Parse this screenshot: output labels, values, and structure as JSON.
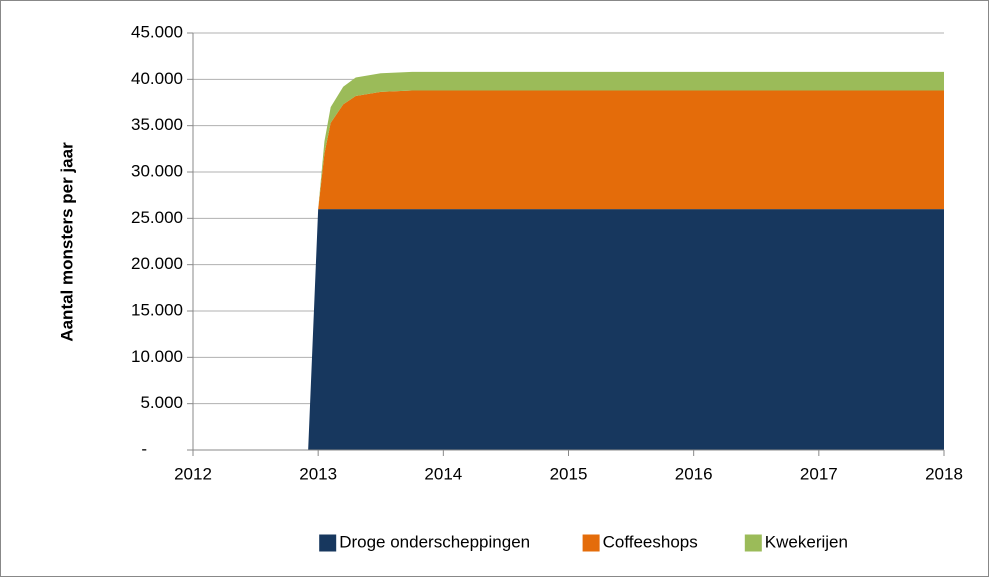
{
  "chart_data": {
    "type": "stacked_area",
    "y_label": "Aantal monsters per jaar",
    "x": [
      2012,
      2012.92,
      2013,
      2013.05,
      2013.1,
      2013.2,
      2013.3,
      2013.5,
      2013.75,
      2014,
      2015,
      2016,
      2017,
      2018
    ],
    "series": [
      {
        "name": "Droge onderscheppingen",
        "color": "#17375e",
        "values": [
          0,
          0,
          26000,
          26000,
          26000,
          26000,
          26000,
          26000,
          26000,
          26000,
          26000,
          26000,
          26000,
          26000
        ]
      },
      {
        "name": "Coffeeshops",
        "color": "#e46c0a",
        "values": [
          0,
          0,
          0,
          6000,
          9300,
          11300,
          12200,
          12650,
          12800,
          12800,
          12800,
          12800,
          12800,
          12800
        ]
      },
      {
        "name": "Kwekerijen",
        "color": "#9bbb59",
        "values": [
          0,
          0,
          0,
          1300,
          1700,
          1900,
          2000,
          2000,
          2000,
          2000,
          2000,
          2000,
          2000,
          2000
        ]
      }
    ],
    "xlim": [
      2012,
      2018
    ],
    "xticks": [
      2012,
      2013,
      2014,
      2015,
      2016,
      2017,
      2018
    ],
    "ylim": [
      0,
      45000
    ],
    "yticks": [
      {
        "value": 0,
        "label": "-"
      },
      {
        "value": 5000,
        "label": "5.000"
      },
      {
        "value": 10000,
        "label": "10.000"
      },
      {
        "value": 15000,
        "label": "15.000"
      },
      {
        "value": 20000,
        "label": "20.000"
      },
      {
        "value": 25000,
        "label": "25.000"
      },
      {
        "value": 30000,
        "label": "30.000"
      },
      {
        "value": 35000,
        "label": "35.000"
      },
      {
        "value": 40000,
        "label": "40.000"
      },
      {
        "value": 45000,
        "label": "45.000"
      }
    ],
    "grid": true,
    "legend": "bottom"
  }
}
